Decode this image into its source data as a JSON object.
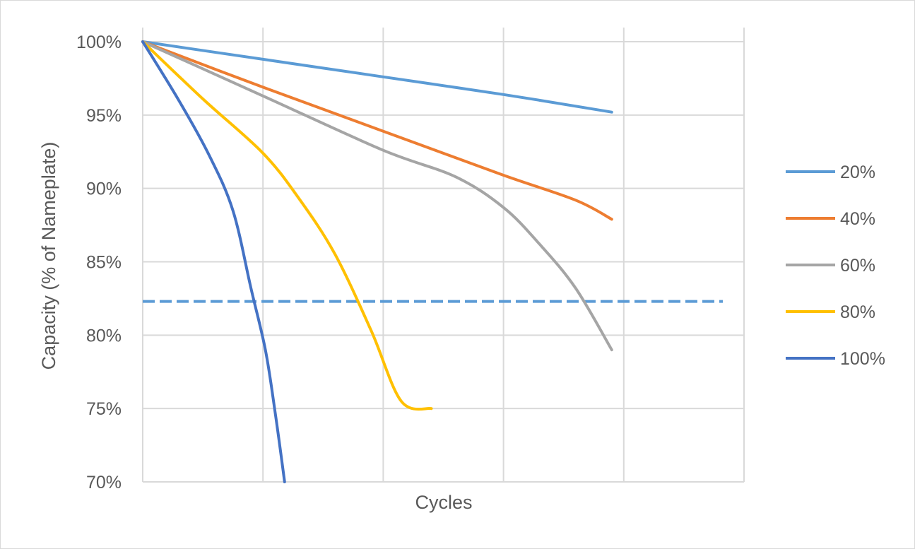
{
  "chart_data": {
    "type": "line",
    "title": "",
    "xlabel": "Cycles",
    "ylabel": "Capacity (% of Nameplate)",
    "x_tick_labels": [],
    "xlim": [
      0,
      5
    ],
    "ylim": [
      70,
      100
    ],
    "y_ticks": [
      70,
      75,
      80,
      85,
      90,
      95,
      100
    ],
    "y_tick_labels": [
      "70%",
      "75%",
      "80%",
      "85%",
      "90%",
      "95%",
      "100%"
    ],
    "grid": true,
    "legend": "right",
    "series": [
      {
        "name": "20%",
        "color": "#5b9bd5",
        "points": [
          [
            0,
            100
          ],
          [
            1,
            98.8
          ],
          [
            2,
            97.6
          ],
          [
            3,
            96.4
          ],
          [
            3.9,
            95.2
          ]
        ]
      },
      {
        "name": "40%",
        "color": "#ed7d31",
        "points": [
          [
            0,
            100
          ],
          [
            1,
            96.9
          ],
          [
            2,
            93.9
          ],
          [
            3,
            90.9
          ],
          [
            3.6,
            89.2
          ],
          [
            3.9,
            87.9
          ]
        ]
      },
      {
        "name": "60%",
        "color": "#a5a5a5",
        "points": [
          [
            0,
            100
          ],
          [
            1,
            96.3
          ],
          [
            2,
            92.6
          ],
          [
            2.6,
            90.8
          ],
          [
            3,
            88.7
          ],
          [
            3.3,
            86.2
          ],
          [
            3.6,
            83.2
          ],
          [
            3.9,
            79
          ]
        ]
      },
      {
        "name": "80%",
        "color": "#ffc000",
        "points": [
          [
            0,
            100
          ],
          [
            0.5,
            96.1
          ],
          [
            1,
            92.4
          ],
          [
            1.3,
            89.3
          ],
          [
            1.6,
            85.5
          ],
          [
            1.9,
            80.3
          ],
          [
            2.15,
            75.5
          ],
          [
            2.4,
            75
          ]
        ]
      },
      {
        "name": "100%",
        "color": "#4472c4",
        "points": [
          [
            0,
            100
          ],
          [
            0.3,
            96
          ],
          [
            0.55,
            92.3
          ],
          [
            0.75,
            88.5
          ],
          [
            0.9,
            83.2
          ],
          [
            1.02,
            79
          ],
          [
            1.1,
            74.8
          ],
          [
            1.18,
            70
          ]
        ]
      }
    ],
    "reference_line": {
      "y": 82.3,
      "color": "#5b9bd5",
      "style": "dashed"
    }
  }
}
